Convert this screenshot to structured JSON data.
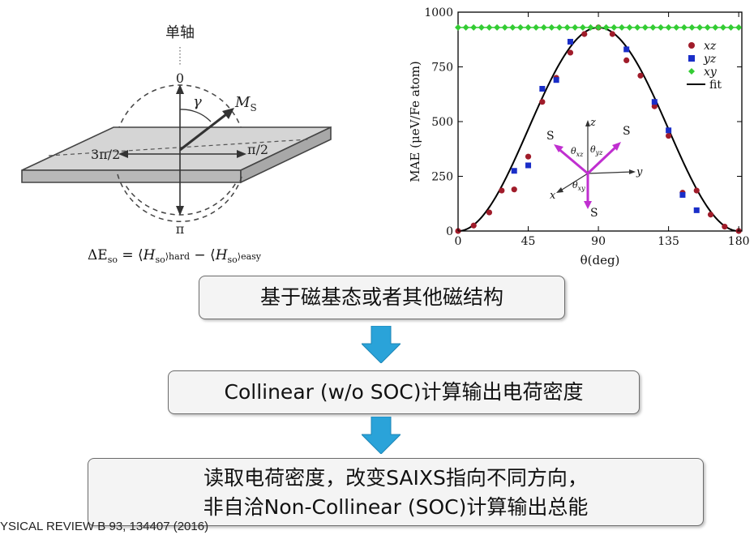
{
  "left_figure": {
    "axis_label": "单轴",
    "top_label": "0",
    "bottom_label": "π",
    "gamma_label": "γ",
    "ms_label": "M",
    "ms_sub": "S",
    "left_angle": "3π/2",
    "right_angle": "π/2",
    "equation": "ΔE_so = ⟨H_so⟩_hard − ⟨H_so⟩_easy",
    "equation_parts": {
      "delta_e": "ΔE",
      "so1": "so",
      "eq": " = ⟨",
      "h1": "H",
      "so2": "so",
      "hard": "⟩hard",
      "minus": " − ⟨",
      "h2": "H",
      "so3": "so",
      "easy": "⟩easy"
    }
  },
  "chart_data": {
    "type": "scatter",
    "xlabel": "θ(deg)",
    "ylabel": "MAE (μeV/Fe atom)",
    "xlim": [
      0,
      182
    ],
    "ylim": [
      0,
      1000
    ],
    "xticks": [
      0,
      45,
      90,
      135,
      180
    ],
    "yticks": [
      0,
      250,
      500,
      750,
      1000
    ],
    "legend_position": "top-right",
    "series": [
      {
        "name": "xz",
        "marker": "circle",
        "color": "#a01c2a",
        "x": [
          0,
          10,
          20,
          28,
          36,
          45,
          54,
          63,
          72,
          81,
          90,
          99,
          108,
          117,
          126,
          135,
          144,
          153,
          162,
          171,
          180
        ],
        "y": [
          0,
          25,
          85,
          185,
          190,
          340,
          590,
          700,
          815,
          900,
          930,
          900,
          780,
          710,
          570,
          435,
          175,
          185,
          75,
          20,
          0
        ]
      },
      {
        "name": "yz",
        "marker": "square",
        "color": "#1a2ec8",
        "x": [
          36,
          45,
          54,
          63,
          72,
          108,
          126,
          135,
          144,
          153
        ],
        "y": [
          275,
          300,
          650,
          690,
          865,
          830,
          590,
          460,
          165,
          95
        ]
      },
      {
        "name": "xy",
        "marker": "diamond",
        "color": "#33cc33",
        "x": [
          0,
          5,
          10,
          15,
          20,
          25,
          30,
          35,
          40,
          45,
          50,
          55,
          60,
          65,
          70,
          75,
          80,
          85,
          90,
          95,
          100,
          105,
          110,
          115,
          120,
          125,
          130,
          135,
          140,
          145,
          150,
          155,
          160,
          165,
          170,
          175,
          180
        ],
        "y": [
          930,
          930,
          930,
          930,
          930,
          930,
          930,
          930,
          930,
          930,
          930,
          930,
          930,
          930,
          930,
          930,
          930,
          930,
          930,
          930,
          930,
          930,
          930,
          930,
          930,
          930,
          930,
          930,
          930,
          930,
          930,
          930,
          930,
          930,
          930,
          930,
          930
        ]
      },
      {
        "name": "fit",
        "line": true,
        "color": "#000000",
        "amplitude": 930
      }
    ],
    "inset": {
      "z": "z",
      "y": "y",
      "x": "x",
      "s": "S",
      "theta": "θ",
      "sub_xz": "xz",
      "sub_yz": "yz",
      "sub_xy": "xy"
    }
  },
  "flow": {
    "step1": "基于磁基态或者其他磁结构",
    "step2": "Collinear (w/o SOC)计算输出电荷密度",
    "step3_line1": "读取电荷密度，改变SAIXS指向不同方向，",
    "step3_line2": "非自洽Non-Collinear (SOC)计算输出总能",
    "arrow_color": "#2aa3d9"
  },
  "footer": {
    "reference": "YSICAL REVIEW B 93, 134407 (2016)"
  }
}
